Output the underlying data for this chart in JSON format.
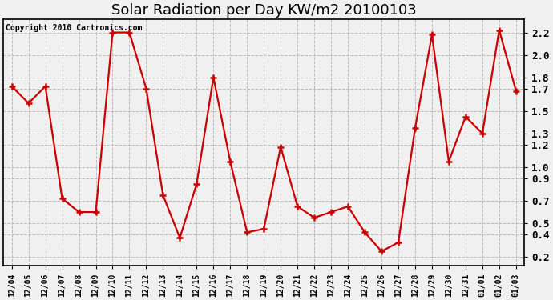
{
  "title": "Solar Radiation per Day KW/m2 20100103",
  "copyright_text": "Copyright 2010 Cartronics.com",
  "labels": [
    "12/04",
    "12/05",
    "12/06",
    "12/07",
    "12/08",
    "12/09",
    "12/10",
    "12/11",
    "12/12",
    "12/13",
    "12/14",
    "12/15",
    "12/16",
    "12/17",
    "12/18",
    "12/19",
    "12/20",
    "12/21",
    "12/22",
    "12/23",
    "12/24",
    "12/25",
    "12/26",
    "12/27",
    "12/28",
    "12/29",
    "12/30",
    "12/31",
    "01/01",
    "01/02",
    "01/03"
  ],
  "values": [
    1.72,
    1.57,
    1.72,
    0.72,
    0.6,
    0.6,
    2.2,
    2.2,
    1.7,
    0.75,
    0.37,
    0.85,
    1.8,
    1.05,
    0.42,
    0.45,
    1.18,
    0.65,
    0.55,
    0.6,
    0.65,
    0.42,
    0.25,
    0.33,
    1.35,
    2.18,
    1.05,
    1.45,
    1.3,
    2.22,
    1.68
  ],
  "line_color": "#cc0000",
  "marker": "+",
  "marker_size": 6,
  "line_width": 1.6,
  "ylim": [
    0.12,
    2.32
  ],
  "yticks": [
    0.2,
    0.4,
    0.5,
    0.7,
    0.9,
    1.0,
    1.2,
    1.3,
    1.5,
    1.7,
    1.8,
    2.0,
    2.2
  ],
  "grid_color": "#bbbbbb",
  "bg_color": "#f0f0f0",
  "plot_bg_color": "#f0f0f0",
  "title_fontsize": 13,
  "copyright_fontsize": 7,
  "tick_fontsize": 7,
  "ytick_fontsize": 9
}
